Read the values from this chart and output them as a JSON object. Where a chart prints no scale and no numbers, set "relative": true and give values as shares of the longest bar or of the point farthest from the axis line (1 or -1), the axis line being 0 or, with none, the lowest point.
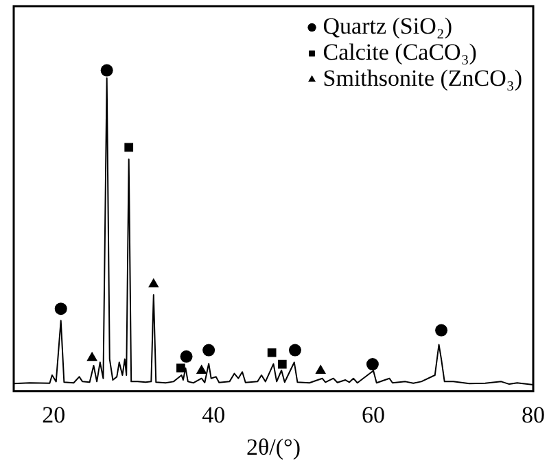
{
  "chart_data": {
    "type": "scatter",
    "xlabel": "2θ/(°)",
    "relative": true,
    "xlim": [
      15,
      80
    ],
    "xticks": [
      20,
      40,
      60,
      80
    ],
    "grid": false,
    "legend": "top right",
    "series": [
      {
        "type": "line",
        "color": "#000000",
        "marker": "none",
        "x": [
          15,
          17,
          19.5,
          19.8,
          20.3,
          20.9,
          21.3,
          22.5,
          23.2,
          23.6,
          24.5,
          25.0,
          25.4,
          25.8,
          26.2,
          26.65,
          27.0,
          27.4,
          27.9,
          28.2,
          28.6,
          28.9,
          29.1,
          29.4,
          29.7,
          30.5,
          31.5,
          32.2,
          32.5,
          32.8,
          34,
          35,
          36.0,
          36.2,
          36.5,
          36.8,
          37.5,
          38.5,
          38.9,
          39.4,
          39.7,
          40.3,
          40.7,
          42,
          42.6,
          43.1,
          43.6,
          44,
          45.5,
          46,
          46.5,
          47.5,
          47.9,
          48.5,
          48.9,
          50.1,
          50.5,
          52,
          53.6,
          54,
          55,
          55.5,
          56.5,
          57,
          57.5,
          58,
          60.0,
          60.4,
          62,
          62.4,
          64,
          65,
          66,
          67.7,
          68.2,
          68.5,
          68.9,
          70,
          72,
          74,
          76,
          77,
          78,
          80
        ],
        "values": [
          0.024,
          0.026,
          0.025,
          0.05,
          0.03,
          0.22,
          0.028,
          0.026,
          0.045,
          0.03,
          0.028,
          0.08,
          0.03,
          0.09,
          0.04,
          0.976,
          0.1,
          0.035,
          0.045,
          0.09,
          0.05,
          0.1,
          0.05,
          0.723,
          0.03,
          0.03,
          0.028,
          0.03,
          0.3,
          0.028,
          0.026,
          0.03,
          0.05,
          0.035,
          0.072,
          0.03,
          0.026,
          0.04,
          0.027,
          0.086,
          0.04,
          0.045,
          0.027,
          0.03,
          0.055,
          0.04,
          0.06,
          0.027,
          0.03,
          0.05,
          0.03,
          0.085,
          0.03,
          0.065,
          0.028,
          0.09,
          0.028,
          0.026,
          0.04,
          0.028,
          0.04,
          0.027,
          0.035,
          0.028,
          0.04,
          0.026,
          0.064,
          0.026,
          0.04,
          0.026,
          0.03,
          0.025,
          0.03,
          0.05,
          0.145,
          0.1,
          0.03,
          0.03,
          0.024,
          0.025,
          0.03,
          0.022,
          0.026,
          0.02
        ]
      },
      {
        "name": "Quartz (SiO₂)",
        "color": "#000000",
        "marker": "circle",
        "x": [
          20.9,
          26.65,
          36.6,
          39.4,
          50.2,
          59.9,
          68.5
        ],
        "values": [
          0.257,
          1.0,
          0.108,
          0.128,
          0.128,
          0.084,
          0.19
        ]
      },
      {
        "name": "Calcite (CaCO₃)",
        "color": "#000000",
        "marker": "square",
        "x": [
          29.4,
          35.9,
          47.3,
          48.6
        ],
        "values": [
          0.76,
          0.072,
          0.12,
          0.084
        ]
      },
      {
        "name": "Smithsonite (ZnCO₃)",
        "color": "#000000",
        "marker": "triangle",
        "x": [
          24.8,
          32.5,
          38.5,
          53.4
        ],
        "values": [
          0.104,
          0.333,
          0.064,
          0.064
        ]
      }
    ]
  }
}
